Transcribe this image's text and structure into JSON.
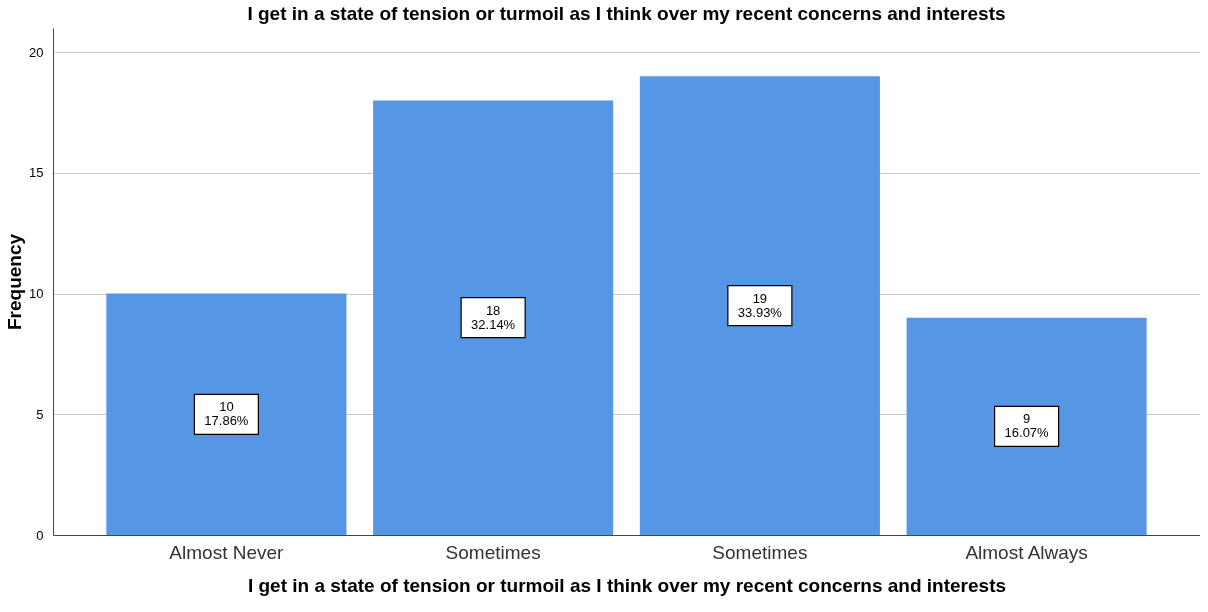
{
  "chart_data": {
    "type": "bar",
    "title": "I get in a state of tension or turmoil as I think over my recent concerns and interests",
    "xlabel": "I get in a state of tension or turmoil as I think over my recent concerns and interests",
    "ylabel": "Frequency",
    "categories": [
      "Almost Never",
      "Sometimes",
      "Sometimes",
      "Almost Always"
    ],
    "values": [
      10,
      18,
      19,
      9
    ],
    "color": "#5596e5",
    "value_labels": [
      "10\n17.86%",
      "18\n32.14%",
      "19\n33.93%",
      "9\n16.07%"
    ],
    "ylim": [
      0,
      21
    ],
    "yticks": [
      0,
      5,
      10,
      15,
      20
    ],
    "grid": "y"
  }
}
